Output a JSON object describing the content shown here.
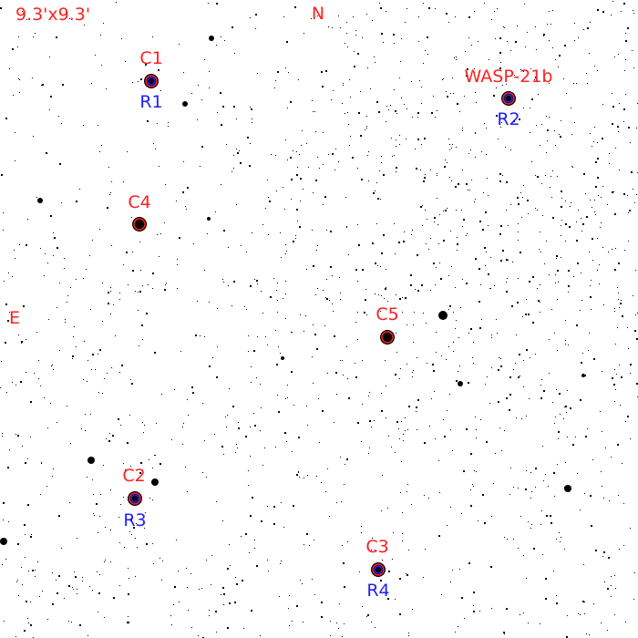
{
  "field_of_view": "9.3'x9.3'",
  "orientation": {
    "north": "N",
    "east": "E"
  },
  "colors": {
    "comparison": "#ff2020",
    "reference": "#2020ff",
    "stars": "#000000",
    "background": "#ffffff"
  },
  "targets": [
    {
      "id": "c1",
      "label": "C1",
      "ref": "R1"
    },
    {
      "id": "wasp",
      "label": "WASP-21b",
      "ref": "R2"
    },
    {
      "id": "c4",
      "label": "C4"
    },
    {
      "id": "c5",
      "label": "C5"
    },
    {
      "id": "c2",
      "label": "C2",
      "ref": "R3"
    },
    {
      "id": "c3",
      "label": "C3",
      "ref": "R4"
    }
  ]
}
